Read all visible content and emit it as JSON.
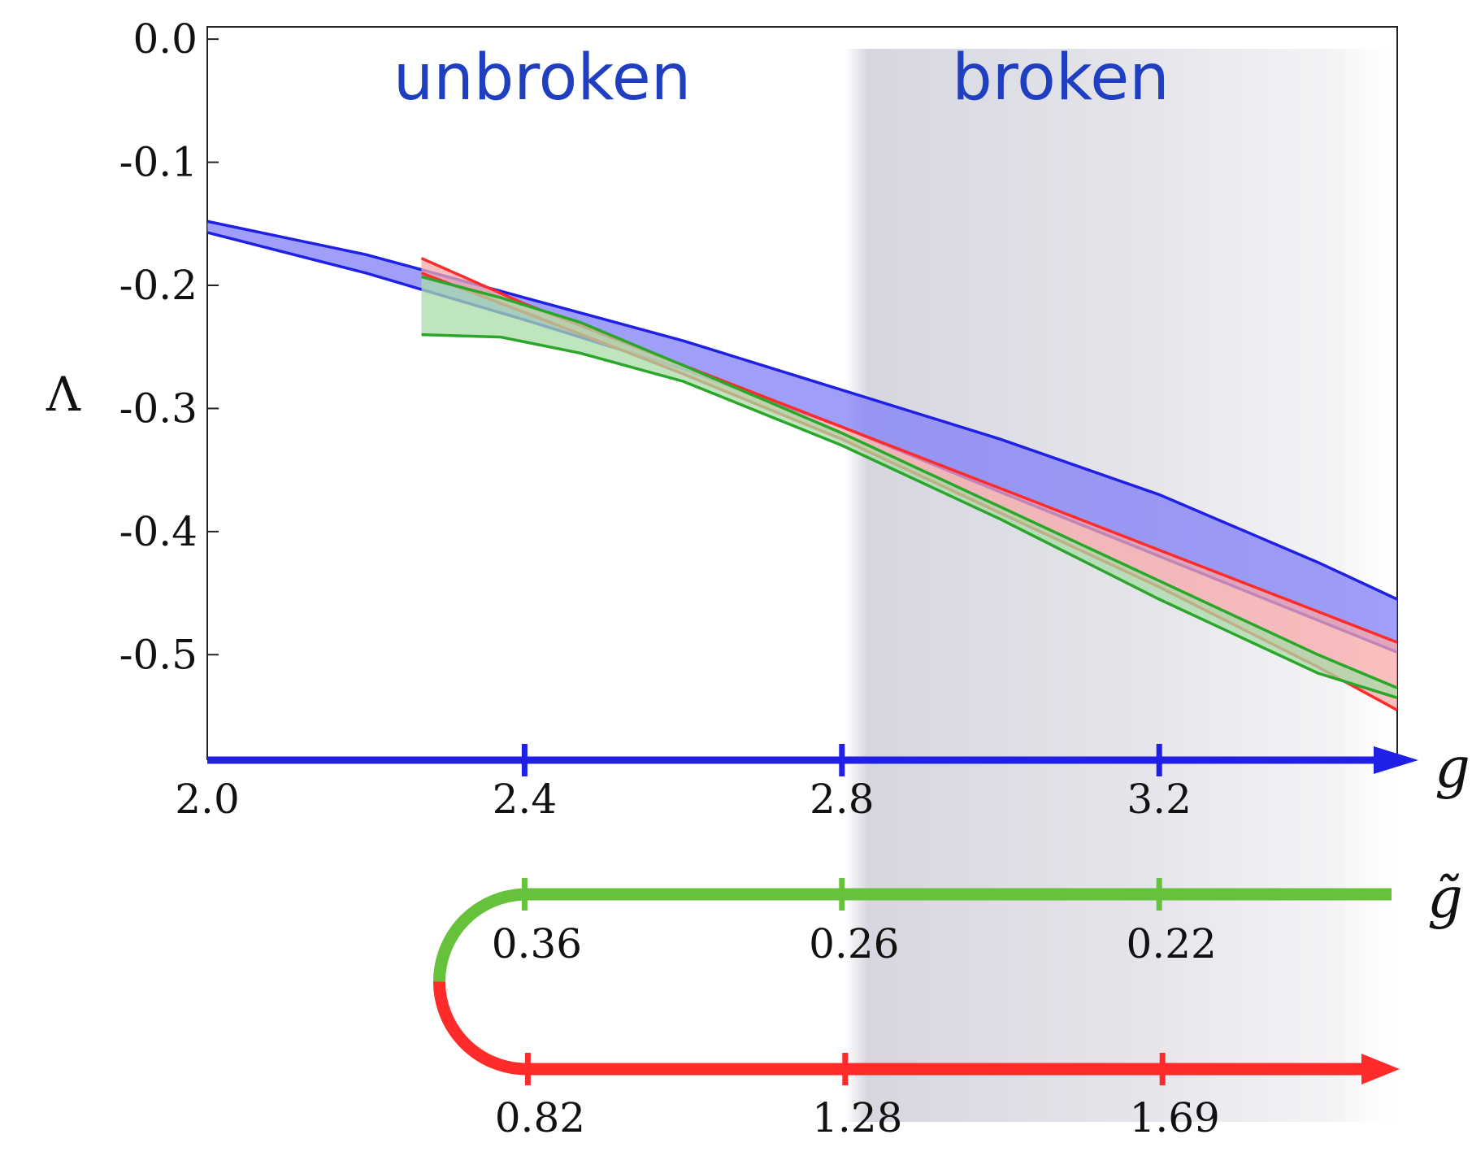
{
  "chart_data": {
    "type": "area",
    "ylabel": "Λ",
    "ylim": [
      -0.585,
      0.01
    ],
    "yticks": [
      "0.0",
      "-0.1",
      "-0.2",
      "-0.3",
      "-0.4",
      "-0.5"
    ],
    "xlim": [
      2.0,
      3.5
    ],
    "axes": [
      {
        "symbol": "g",
        "color": "#1f1fe6",
        "ticks": [
          "2.0",
          "2.4",
          "2.8",
          "3.2"
        ],
        "tick_values": [
          2.0,
          2.4,
          2.8,
          3.2
        ]
      },
      {
        "symbol": "g̃",
        "color": "#66c23a",
        "ticks": [
          "0.36",
          "0.26",
          "0.22"
        ],
        "tick_positions_g": [
          2.4,
          2.8,
          3.2
        ]
      },
      {
        "symbol": "",
        "color": "#ff2a2a",
        "ticks": [
          "0.82",
          "1.28",
          "1.69"
        ],
        "tick_positions_g": [
          2.4,
          2.8,
          3.2
        ]
      }
    ],
    "regions": [
      {
        "label": "unbroken",
        "from": 2.0,
        "to": 2.78
      },
      {
        "label": "broken",
        "from": 2.78,
        "to": 3.5,
        "shaded": true,
        "color": "#d9d9e2"
      }
    ],
    "series": [
      {
        "color": "#1f1fe6",
        "fill": "#7f7ff7",
        "x": [
          2.0,
          2.2,
          2.4,
          2.6,
          2.8,
          3.0,
          3.2,
          3.4,
          3.5
        ],
        "upper": [
          -0.148,
          -0.175,
          -0.21,
          -0.245,
          -0.285,
          -0.325,
          -0.37,
          -0.425,
          -0.455
        ],
        "lower": [
          -0.157,
          -0.19,
          -0.228,
          -0.268,
          -0.315,
          -0.368,
          -0.42,
          -0.472,
          -0.498
        ]
      },
      {
        "color": "#ff2a2a",
        "fill": "#f7a8a8",
        "x": [
          2.27,
          2.4,
          2.6,
          2.8,
          3.0,
          3.2,
          3.4,
          3.5
        ],
        "upper": [
          -0.178,
          -0.215,
          -0.265,
          -0.315,
          -0.365,
          -0.415,
          -0.465,
          -0.49
        ],
        "lower": [
          -0.19,
          -0.222,
          -0.272,
          -0.325,
          -0.385,
          -0.445,
          -0.51,
          -0.545
        ]
      },
      {
        "color": "#2aa62a",
        "fill": "#a8dca8",
        "x": [
          2.27,
          2.37,
          2.47,
          2.6,
          2.8,
          3.0,
          3.2,
          3.4,
          3.5
        ],
        "upper": [
          -0.193,
          -0.21,
          -0.23,
          -0.265,
          -0.32,
          -0.38,
          -0.44,
          -0.5,
          -0.527
        ],
        "lower": [
          -0.24,
          -0.242,
          -0.255,
          -0.278,
          -0.33,
          -0.39,
          -0.455,
          -0.515,
          -0.535
        ]
      }
    ]
  }
}
